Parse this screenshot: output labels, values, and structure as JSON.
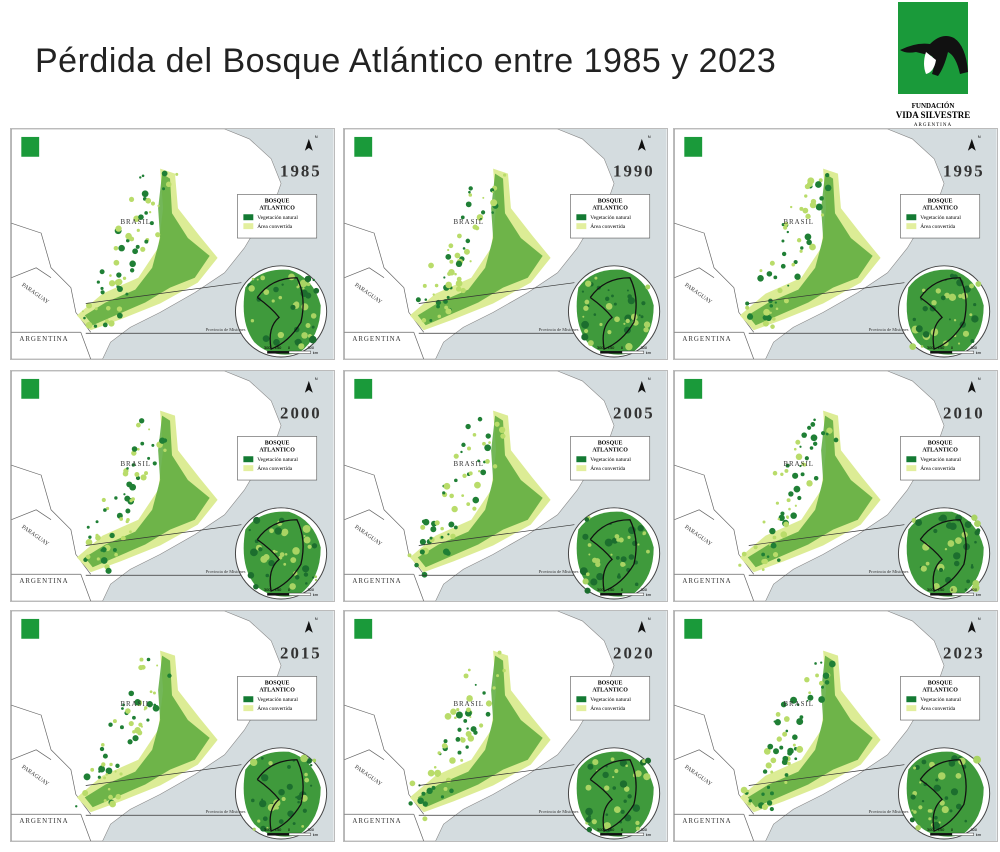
{
  "title": "Pérdida del Bosque Atlántico entre 1985 y 2023",
  "logo": {
    "line1": "FUNDACIÓN",
    "line2": "VIDA SILVESTRE",
    "line3": "ARGENTINA"
  },
  "panel": {
    "country_brazil": "BRASIL",
    "country_paraguay": "PARAGUAY",
    "country_argentina": "ARGENTINA",
    "legend_title_1": "BOSQUE",
    "legend_title_2": "ATLANTICO",
    "legend_items": [
      "Vegetación natural",
      "Área convertida"
    ],
    "province": "Provincia de Misiones",
    "scale": [
      "300",
      "150",
      "0",
      "300"
    ],
    "scale_unit": "km",
    "north": "N"
  },
  "maps": [
    {
      "year": "1985"
    },
    {
      "year": "1990"
    },
    {
      "year": "1995"
    },
    {
      "year": "2000"
    },
    {
      "year": "2005"
    },
    {
      "year": "2010"
    },
    {
      "year": "2015"
    },
    {
      "year": "2020"
    },
    {
      "year": "2023"
    }
  ]
}
